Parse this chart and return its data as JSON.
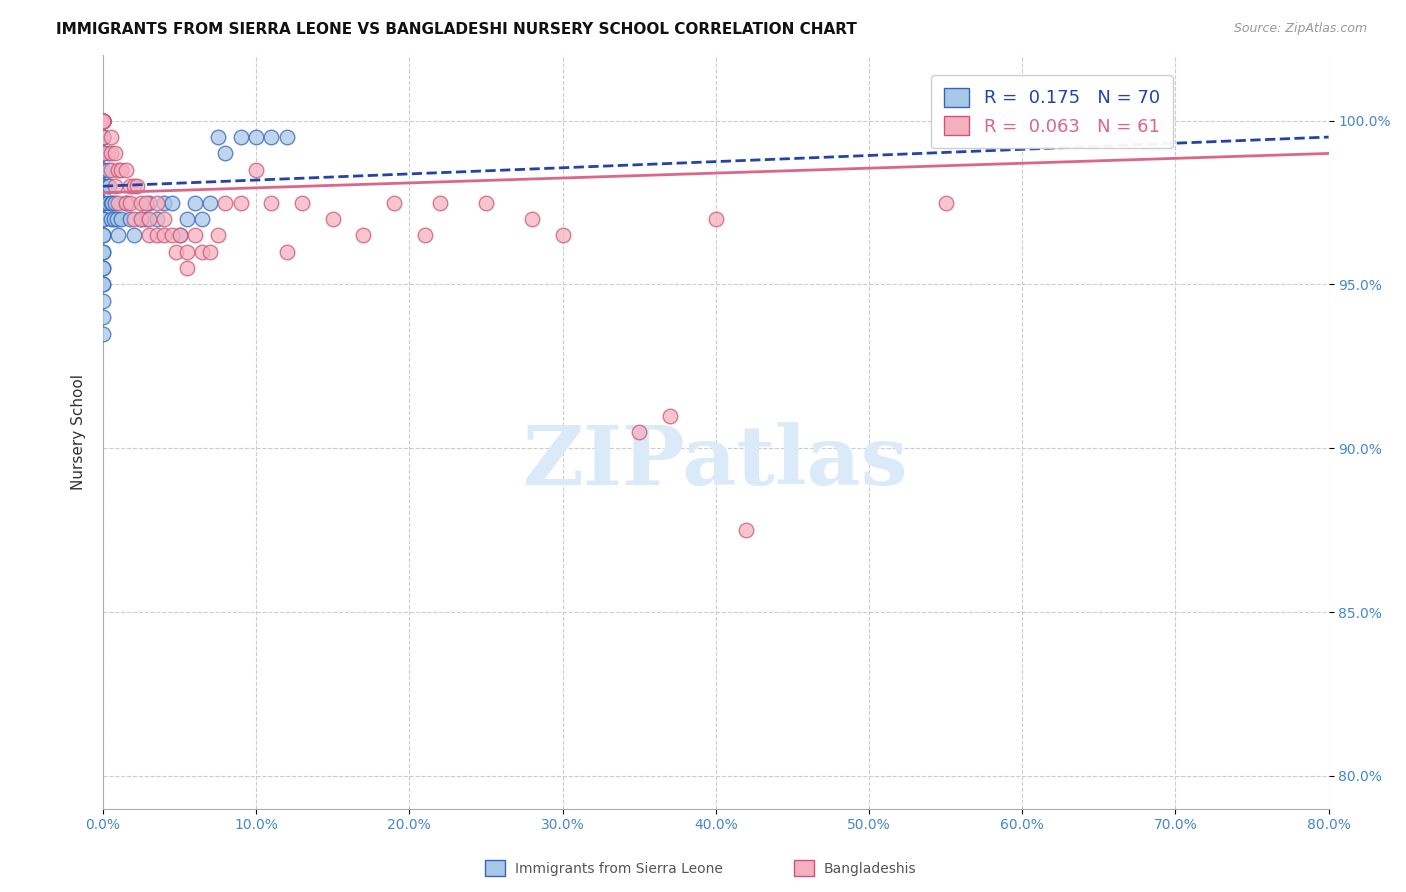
{
  "title": "IMMIGRANTS FROM SIERRA LEONE VS BANGLADESHI NURSERY SCHOOL CORRELATION CHART",
  "source": "Source: ZipAtlas.com",
  "ylabel": "Nursery School",
  "xlim": [
    0.0,
    80.0
  ],
  "ylim": [
    79.0,
    102.0
  ],
  "y_ticks": [
    80.0,
    85.0,
    90.0,
    95.0,
    100.0
  ],
  "y_tick_labels": [
    "80.0%",
    "85.0%",
    "90.0%",
    "95.0%",
    "100.0%"
  ],
  "x_ticks": [
    0.0,
    10.0,
    20.0,
    30.0,
    40.0,
    50.0,
    60.0,
    70.0,
    80.0
  ],
  "blue_R": 0.175,
  "blue_N": 70,
  "pink_R": 0.063,
  "pink_N": 61,
  "blue_face": "#a8c8e8",
  "blue_edge": "#3366bb",
  "pink_face": "#f5b0c0",
  "pink_edge": "#cc5577",
  "blue_trendline_color": "#2244aa",
  "pink_trendline_color": "#dd6688",
  "watermark_color": "#daeaf8",
  "watermark_text": "ZIPatlas",
  "blue_scatter_x": [
    0.0,
    0.0,
    0.0,
    0.0,
    0.0,
    0.0,
    0.0,
    0.0,
    0.0,
    0.0,
    0.0,
    0.0,
    0.0,
    0.0,
    0.0,
    0.0,
    0.0,
    0.0,
    0.0,
    0.0,
    0.0,
    0.0,
    0.0,
    0.0,
    0.0,
    0.0,
    0.0,
    0.0,
    0.0,
    0.0,
    0.0,
    0.0,
    0.0,
    0.0,
    0.0,
    0.0,
    0.0,
    0.3,
    0.3,
    0.3,
    0.3,
    0.4,
    0.5,
    0.5,
    0.6,
    0.7,
    0.8,
    0.9,
    1.0,
    1.2,
    1.5,
    1.8,
    2.0,
    2.5,
    2.8,
    3.0,
    3.5,
    4.0,
    4.5,
    5.0,
    5.5,
    6.0,
    6.5,
    7.0,
    7.5,
    8.0,
    9.0,
    10.0,
    11.0,
    12.0
  ],
  "blue_scatter_y": [
    100.0,
    100.0,
    100.0,
    100.0,
    100.0,
    100.0,
    100.0,
    100.0,
    99.5,
    99.5,
    99.0,
    99.0,
    98.5,
    98.5,
    98.0,
    98.0,
    97.5,
    97.5,
    97.0,
    97.0,
    96.5,
    96.5,
    96.0,
    96.0,
    95.5,
    95.5,
    95.0,
    95.0,
    94.5,
    94.0,
    93.5,
    99.5,
    99.0,
    98.5,
    98.0,
    97.5,
    97.0,
    99.0,
    98.5,
    98.0,
    97.5,
    98.0,
    97.5,
    97.0,
    97.5,
    97.0,
    97.5,
    97.0,
    96.5,
    97.0,
    97.5,
    97.0,
    96.5,
    97.0,
    97.0,
    97.5,
    97.0,
    97.5,
    97.5,
    96.5,
    97.0,
    97.5,
    97.0,
    97.5,
    99.5,
    99.0,
    99.5,
    99.5,
    99.5,
    99.5
  ],
  "pink_scatter_x": [
    0.0,
    0.0,
    0.0,
    0.0,
    0.0,
    0.0,
    0.0,
    0.0,
    0.0,
    0.5,
    0.5,
    0.5,
    0.8,
    0.8,
    1.0,
    1.0,
    1.2,
    1.5,
    1.5,
    1.8,
    1.8,
    2.0,
    2.0,
    2.2,
    2.5,
    2.5,
    2.8,
    3.0,
    3.0,
    3.5,
    3.5,
    4.0,
    4.0,
    4.5,
    4.8,
    5.0,
    5.5,
    5.5,
    6.0,
    6.5,
    7.0,
    7.5,
    8.0,
    9.0,
    10.0,
    11.0,
    12.0,
    13.0,
    15.0,
    17.0,
    19.0,
    21.0,
    22.0,
    25.0,
    28.0,
    30.0,
    35.0,
    37.0,
    40.0,
    42.0,
    55.0
  ],
  "pink_scatter_y": [
    100.0,
    100.0,
    100.0,
    100.0,
    100.0,
    100.0,
    100.0,
    99.5,
    99.0,
    99.5,
    99.0,
    98.5,
    99.0,
    98.0,
    98.5,
    97.5,
    98.5,
    98.5,
    97.5,
    98.0,
    97.5,
    98.0,
    97.0,
    98.0,
    97.5,
    97.0,
    97.5,
    97.0,
    96.5,
    97.5,
    96.5,
    97.0,
    96.5,
    96.5,
    96.0,
    96.5,
    96.0,
    95.5,
    96.5,
    96.0,
    96.0,
    96.5,
    97.5,
    97.5,
    98.5,
    97.5,
    96.0,
    97.5,
    97.0,
    96.5,
    97.5,
    96.5,
    97.5,
    97.5,
    97.0,
    96.5,
    90.5,
    91.0,
    97.0,
    87.5,
    97.5
  ]
}
